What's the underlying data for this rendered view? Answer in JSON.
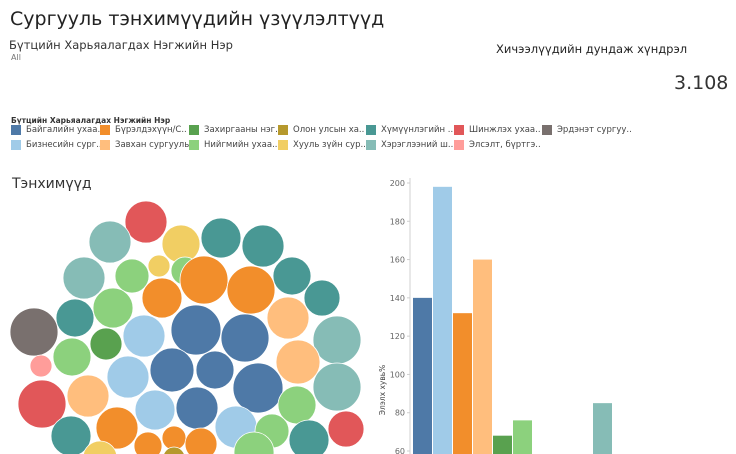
{
  "title": "Сургууль тэнхимүүдийн үзүүлэлтүүд",
  "filter": {
    "label": "Бүтцийн Харьяалагдах Нэгжийн Нэр",
    "value": "All"
  },
  "kpi": {
    "label": "Хичээлүүдийн дундаж хүндрэл",
    "value": "3.108"
  },
  "legend": {
    "title": "Бүтцийн Харьяалагдах Нэгжийн Нэр",
    "items": [
      {
        "label": "Байгалийн ухаа..",
        "color": "#4E79A7"
      },
      {
        "label": "Бүрэлдэхүүн/С..",
        "color": "#F28E2B"
      },
      {
        "label": "Захиргааны нэг..",
        "color": "#59A14F"
      },
      {
        "label": "Олон улсын ха..",
        "color": "#B6992D"
      },
      {
        "label": "Хүмүүнлэгийн ..",
        "color": "#499894"
      },
      {
        "label": "Шинжлэх ухаа..",
        "color": "#E15759"
      },
      {
        "label": "Эрдэнэт сургуу..",
        "color": "#79706E"
      },
      {
        "label": "Бизнесийн сург..",
        "color": "#A0CBE8"
      },
      {
        "label": "Завхан сургууль",
        "color": "#FFBE7D"
      },
      {
        "label": "Нийгмийн ухаа..",
        "color": "#8CD17D"
      },
      {
        "label": "Хууль зүйн сур..",
        "color": "#F1CE63"
      },
      {
        "label": "Хэрэглээний ш..",
        "color": "#86BCB6"
      },
      {
        "label": "Элсэлт, бүртгэ..",
        "color": "#FF9D9A"
      }
    ]
  },
  "bubble_chart": {
    "title": "Тэнхимүүд"
  },
  "chart_data": {
    "type": "bar",
    "ylabel": "Элэлх хувь%",
    "ylim": [
      60,
      200
    ],
    "yticks": [
      60,
      80,
      100,
      120,
      140,
      160,
      180,
      200
    ],
    "categories": [
      "Байгалийн ухаа..",
      "Бизнесийн сург..",
      "Бүрэлдэхүүн/С..",
      "Завхан сургууль",
      "Захиргааны нэг..",
      "Нийгмийн ухаа..",
      "Олон улсын ха..",
      "Хууль зүйн сур..",
      "Хүмүүнлэгийн ..",
      "Хэрэглээний ш.."
    ],
    "values": [
      140,
      198,
      132,
      160,
      68,
      76,
      null,
      null,
      null,
      85
    ],
    "colors": [
      "#4E79A7",
      "#A0CBE8",
      "#F28E2B",
      "#FFBE7D",
      "#59A14F",
      "#8CD17D",
      "#B6992D",
      "#F1CE63",
      "#499894",
      "#86BCB6"
    ]
  }
}
